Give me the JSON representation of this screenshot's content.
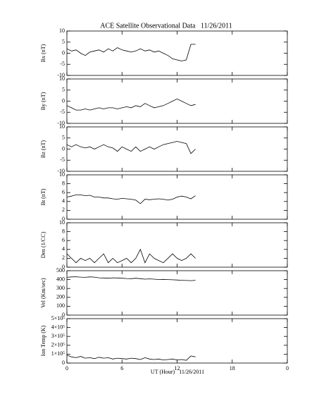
{
  "chart_data": [
    {
      "type": "line",
      "title": "ACE Satellite Observational Data   11/26/2011",
      "ylabel": "Bx (nT)",
      "color": "#000000",
      "x": [
        0,
        0.5,
        1,
        1.5,
        2,
        2.5,
        3,
        3.5,
        4,
        4.5,
        5,
        5.5,
        6,
        6.5,
        7,
        7.5,
        8,
        8.5,
        9,
        9.5,
        10,
        10.5,
        11,
        11.5,
        12,
        12.5,
        13,
        13.5,
        14
      ],
      "values": [
        2,
        1,
        1.5,
        0,
        -1,
        0.5,
        1,
        1.5,
        0.5,
        2,
        1,
        2.5,
        1.5,
        1,
        0.5,
        1,
        2,
        1,
        1.5,
        0.5,
        1,
        0,
        -1,
        -2.5,
        -3,
        -3.5,
        -3,
        4,
        4
      ],
      "ylim": [
        -10,
        10
      ],
      "yticks": [
        -10,
        -5,
        0,
        5,
        10
      ]
    },
    {
      "type": "line",
      "ylabel": "By (nT)",
      "color": "#000000",
      "x": [
        0,
        0.5,
        1,
        1.5,
        2,
        2.5,
        3,
        3.5,
        4,
        4.5,
        5,
        5.5,
        6,
        6.5,
        7,
        7.5,
        8,
        8.5,
        9,
        9.5,
        10,
        10.5,
        11,
        11.5,
        12,
        12.5,
        13,
        13.5,
        14
      ],
      "values": [
        -2,
        -3,
        -4,
        -4,
        -3.5,
        -4,
        -3.5,
        -3,
        -3.5,
        -3,
        -3,
        -3.5,
        -3,
        -2.5,
        -3,
        -2,
        -2.5,
        -1,
        -2,
        -3,
        -2.5,
        -2,
        -1,
        0,
        1,
        0,
        -1,
        -2,
        -1.5
      ],
      "ylim": [
        -10,
        10
      ],
      "yticks": [
        -10,
        -5,
        0,
        5,
        10
      ]
    },
    {
      "type": "line",
      "ylabel": "Bz (nT)",
      "color": "#000000",
      "x": [
        0,
        0.5,
        1,
        1.5,
        2,
        2.5,
        3,
        3.5,
        4,
        4.5,
        5,
        5.5,
        6,
        6.5,
        7,
        7.5,
        8,
        8.5,
        9,
        9.5,
        10,
        10.5,
        11,
        11.5,
        12,
        12.5,
        13,
        13.5,
        14
      ],
      "values": [
        2,
        1,
        2,
        1,
        0.5,
        1,
        0,
        1,
        2,
        1,
        0.5,
        -1,
        1,
        0,
        -1,
        1,
        -1,
        0,
        1,
        0,
        1,
        2,
        2.5,
        3,
        3.5,
        3,
        2.5,
        -2,
        0
      ],
      "ylim": [
        -10,
        10
      ],
      "yticks": [
        -10,
        -5,
        0,
        5,
        10
      ]
    },
    {
      "type": "line",
      "ylabel": "Bt (nT)",
      "color": "#000000",
      "x": [
        0,
        0.5,
        1,
        1.5,
        2,
        2.5,
        3,
        3.5,
        4,
        4.5,
        5,
        5.5,
        6,
        6.5,
        7,
        7.5,
        8,
        8.5,
        9,
        9.5,
        10,
        10.5,
        11,
        11.5,
        12,
        12.5,
        13,
        13.5,
        14
      ],
      "values": [
        5,
        5.2,
        5.5,
        5.5,
        5.3,
        5.4,
        5,
        5,
        4.8,
        4.8,
        4.6,
        4.5,
        4.7,
        4.6,
        4.5,
        4.3,
        3.5,
        4.5,
        4.4,
        4.5,
        4.6,
        4.5,
        4.3,
        4.5,
        5,
        5.2,
        5,
        4.6,
        5.3
      ],
      "ylim": [
        0,
        10
      ],
      "yticks": [
        0,
        2,
        4,
        6,
        8,
        10
      ]
    },
    {
      "type": "line",
      "ylabel": "Den (1/CC)",
      "color": "#000000",
      "x": [
        0,
        0.5,
        1,
        1.5,
        2,
        2.5,
        3,
        3.5,
        4,
        4.5,
        5,
        5.5,
        6,
        6.5,
        7,
        7.5,
        8,
        8.5,
        9,
        9.5,
        10,
        10.5,
        11,
        11.5,
        12,
        12.5,
        13,
        13.5,
        14
      ],
      "values": [
        3,
        2,
        1,
        2,
        1.5,
        2,
        1,
        2,
        3,
        1,
        2,
        1,
        1.5,
        2,
        1,
        2,
        4,
        1,
        3,
        2,
        1.5,
        1,
        2,
        3,
        2,
        1.5,
        2,
        3,
        2
      ],
      "ylim": [
        0,
        10
      ],
      "yticks": [
        0,
        2,
        4,
        6,
        8,
        10
      ]
    },
    {
      "type": "line",
      "ylabel": "Vel (Km/sec)",
      "color": "#000000",
      "x": [
        0,
        0.5,
        1,
        1.5,
        2,
        2.5,
        3,
        3.5,
        4,
        4.5,
        5,
        5.5,
        6,
        6.5,
        7,
        7.5,
        8,
        8.5,
        9,
        9.5,
        10,
        10.5,
        11,
        11.5,
        12,
        12.5,
        13,
        13.5,
        14
      ],
      "values": [
        425,
        430,
        432,
        428,
        425,
        430,
        428,
        420,
        418,
        415,
        420,
        418,
        415,
        412,
        410,
        415,
        410,
        405,
        408,
        405,
        400,
        402,
        400,
        398,
        395,
        392,
        390,
        388,
        392
      ],
      "ylim": [
        0,
        500
      ],
      "yticks": [
        0,
        100,
        200,
        300,
        400,
        500
      ]
    },
    {
      "type": "line",
      "ylabel": "Ion Temp (K)",
      "xlabel": "UT (Hour)   11/26/2011",
      "color": "#000000",
      "x": [
        0,
        0.5,
        1,
        1.5,
        2,
        2.5,
        3,
        3.5,
        4,
        4.5,
        5,
        5.5,
        6,
        6.5,
        7,
        7.5,
        8,
        8.5,
        9,
        9.5,
        10,
        10.5,
        11,
        11.5,
        12,
        12.5,
        13,
        13.5,
        14
      ],
      "values": [
        90000,
        70000,
        60000,
        75000,
        55000,
        60000,
        50000,
        65000,
        55000,
        60000,
        45000,
        55000,
        50000,
        45000,
        55000,
        50000,
        40000,
        60000,
        45000,
        40000,
        45000,
        35000,
        40000,
        45000,
        35000,
        40000,
        30000,
        80000,
        70000
      ],
      "ylim": [
        0,
        500000
      ],
      "yticks": [
        0,
        {
          "value": 100000,
          "label": "1×10⁵"
        },
        {
          "value": 200000,
          "label": "2×10⁵"
        },
        {
          "value": 300000,
          "label": "3×10⁵"
        },
        {
          "value": 400000,
          "label": "4×10⁵"
        },
        {
          "value": 500000,
          "label": "5×10⁵"
        }
      ],
      "xlim": [
        0,
        24
      ],
      "xticks": [
        0,
        6,
        12,
        18,
        {
          "value": 24,
          "label": "0"
        }
      ]
    }
  ]
}
